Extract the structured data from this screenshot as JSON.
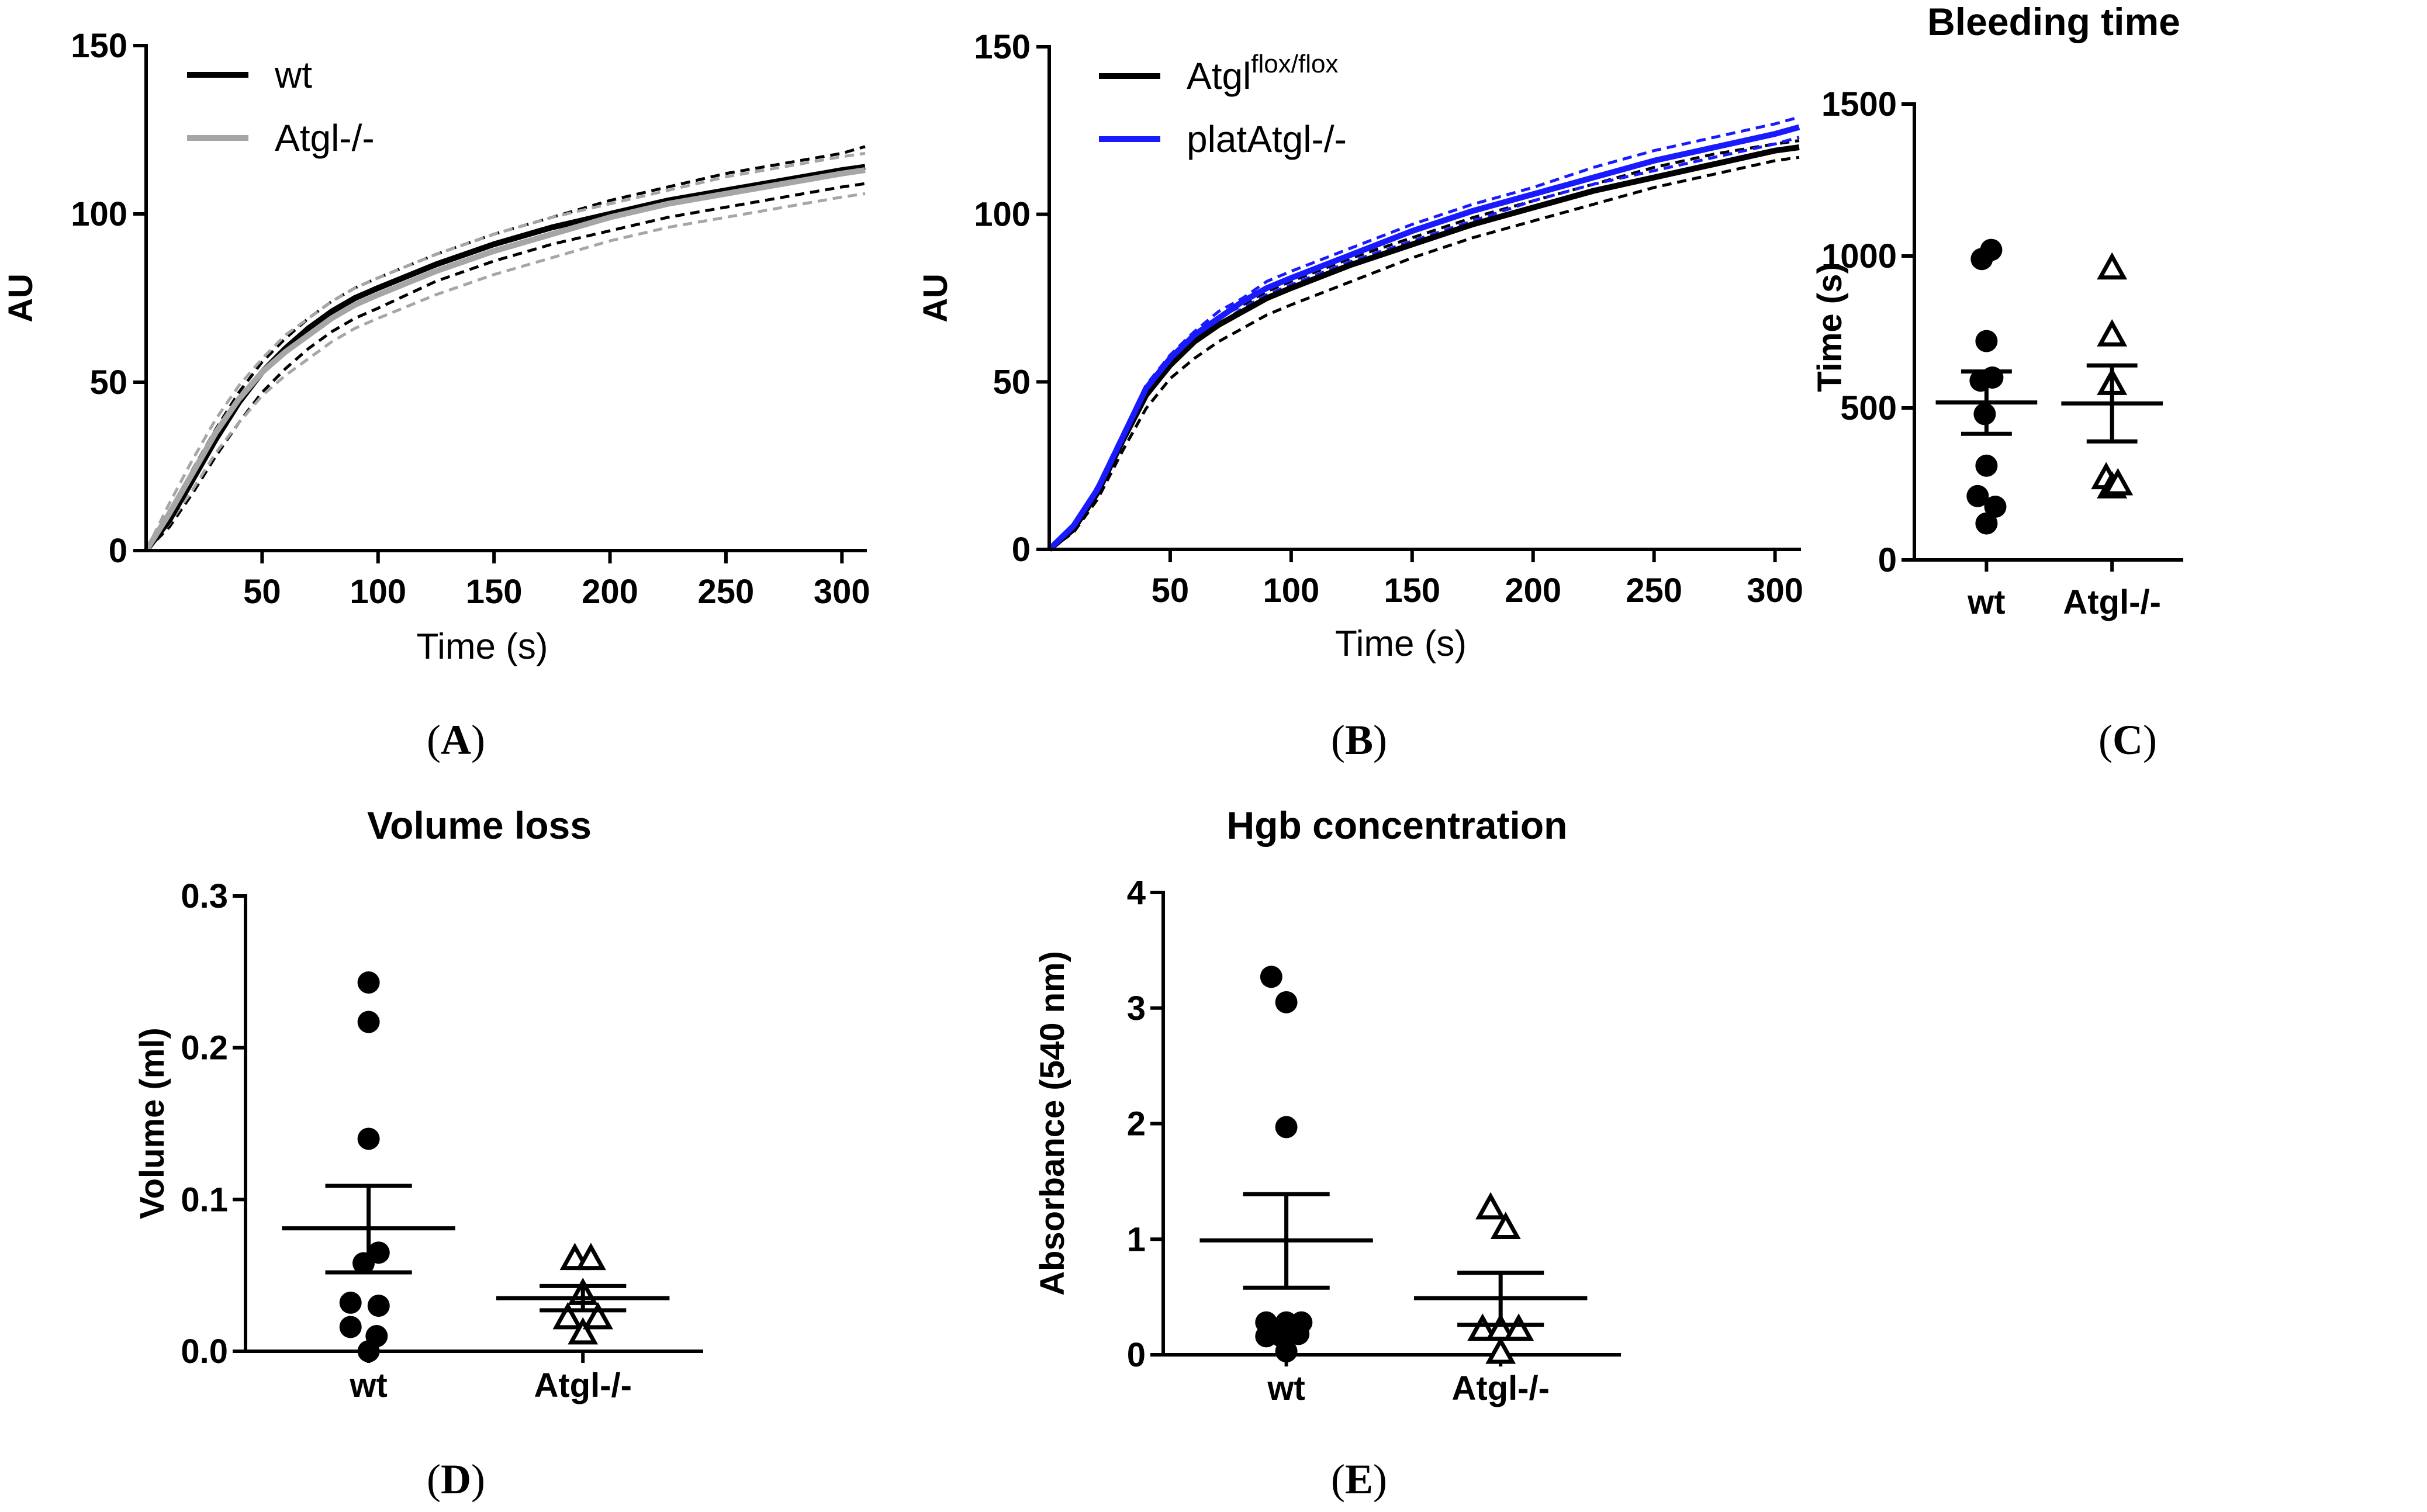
{
  "chart_data": [
    {
      "panel": "A",
      "type": "line",
      "title": "",
      "xlabel": "Time (s)",
      "ylabel": "AU",
      "xlim": [
        0,
        310
      ],
      "ylim": [
        0,
        150
      ],
      "xticks": [
        50,
        100,
        150,
        200,
        250,
        300
      ],
      "yticks": [
        0,
        50,
        100,
        150
      ],
      "legend": [
        "wt",
        "Atgl-/-"
      ],
      "x": [
        0,
        10,
        20,
        30,
        40,
        50,
        60,
        70,
        80,
        90,
        100,
        125,
        150,
        175,
        200,
        225,
        250,
        275,
        300,
        310
      ],
      "series": [
        {
          "name": "wt",
          "color": "#000000",
          "style": "solid",
          "values": [
            0,
            9,
            21,
            33,
            44,
            53,
            60,
            66,
            71,
            75,
            78,
            85,
            91,
            96,
            100,
            104,
            107,
            110,
            113,
            114
          ]
        },
        {
          "name": "wt upper",
          "color": "#000000",
          "style": "dashed",
          "values": [
            0,
            11,
            24,
            36,
            47,
            56,
            63,
            69,
            74,
            78,
            81,
            88,
            94,
            99,
            104,
            108,
            112,
            115,
            118,
            120
          ]
        },
        {
          "name": "wt lower",
          "color": "#000000",
          "style": "dashed",
          "values": [
            0,
            7,
            17,
            28,
            38,
            47,
            54,
            60,
            65,
            69,
            72,
            80,
            86,
            91,
            95,
            99,
            102,
            105,
            108,
            109
          ]
        },
        {
          "name": "Atgl-/-",
          "color": "#a6a6a6",
          "style": "solid",
          "values": [
            0,
            11,
            23,
            35,
            45,
            53,
            59,
            64,
            69,
            73,
            76,
            83,
            89,
            94,
            99,
            103,
            106,
            109,
            112,
            113
          ]
        },
        {
          "name": "Atgl-/- upper",
          "color": "#a6a6a6",
          "style": "dashed",
          "values": [
            0,
            14,
            27,
            39,
            49,
            57,
            64,
            69,
            74,
            78,
            81,
            88,
            94,
            99,
            103,
            107,
            111,
            114,
            117,
            118
          ]
        },
        {
          "name": "Atgl-/- lower",
          "color": "#a6a6a6",
          "style": "dashed",
          "values": [
            0,
            8,
            18,
            29,
            38,
            46,
            52,
            57,
            62,
            66,
            69,
            76,
            82,
            87,
            92,
            96,
            99,
            102,
            105,
            106
          ]
        }
      ],
      "label": "(A)"
    },
    {
      "panel": "B",
      "type": "line",
      "title": "",
      "xlabel": "Time (s)",
      "ylabel": "AU",
      "xlim": [
        0,
        310
      ],
      "ylim": [
        0,
        150
      ],
      "xticks": [
        50,
        100,
        150,
        200,
        250,
        300
      ],
      "yticks": [
        0,
        50,
        100,
        150
      ],
      "legend": [
        {
          "text": "Atgl",
          "sup": "flox/flox"
        },
        {
          "text": "platAtgl-/-",
          "sup": ""
        }
      ],
      "x": [
        0,
        10,
        20,
        30,
        40,
        50,
        60,
        70,
        80,
        90,
        100,
        125,
        150,
        175,
        200,
        225,
        250,
        275,
        300,
        310
      ],
      "series": [
        {
          "name": "Atgl flox/flox",
          "color": "#000000",
          "style": "solid",
          "values": [
            0,
            6,
            17,
            32,
            46,
            55,
            62,
            67,
            71,
            75,
            78,
            85,
            91,
            97,
            102,
            107,
            111,
            115,
            119,
            120
          ]
        },
        {
          "name": "Atgl flox/flox upper",
          "color": "#000000",
          "style": "dashed",
          "values": [
            0,
            7,
            19,
            34,
            48,
            57,
            64,
            69,
            73,
            77,
            80,
            87,
            93,
            99,
            104,
            109,
            114,
            118,
            121,
            122
          ]
        },
        {
          "name": "Atgl flox/flox lower",
          "color": "#000000",
          "style": "dashed",
          "values": [
            0,
            5,
            15,
            29,
            42,
            51,
            57,
            62,
            66,
            70,
            73,
            80,
            87,
            93,
            98,
            103,
            108,
            112,
            116,
            117
          ]
        },
        {
          "name": "platAtgl-/-",
          "color": "#1a1aff",
          "style": "solid",
          "values": [
            0,
            7,
            18,
            33,
            48,
            57,
            64,
            69,
            74,
            78,
            81,
            88,
            95,
            101,
            106,
            111,
            116,
            120,
            124,
            126
          ]
        },
        {
          "name": "platAtgl-/- upper",
          "color": "#1a1aff",
          "style": "dashed",
          "values": [
            0,
            7,
            19,
            34,
            49,
            58,
            65,
            71,
            75,
            80,
            83,
            90,
            97,
            103,
            108,
            114,
            119,
            123,
            127,
            129
          ]
        },
        {
          "name": "platAtgl-/- lower",
          "color": "#1a1aff",
          "style": "dashed",
          "values": [
            0,
            6,
            17,
            31,
            46,
            55,
            62,
            67,
            72,
            76,
            79,
            86,
            92,
            98,
            104,
            109,
            113,
            117,
            121,
            123
          ]
        }
      ],
      "label": "(B)"
    },
    {
      "panel": "C",
      "type": "scatter",
      "title": "Bleeding time",
      "xlabel": "",
      "ylabel": "Time (s)",
      "ylim": [
        0,
        1500
      ],
      "yticks": [
        0,
        500,
        1000,
        1500
      ],
      "categories": [
        "wt",
        "Atgl-/-"
      ],
      "groups": [
        {
          "name": "wt",
          "marker": "circle",
          "points": [
            [
              -0.08,
              990
            ],
            [
              0.08,
              1020
            ],
            [
              0.0,
              720
            ],
            [
              -0.1,
              590
            ],
            [
              0.1,
              600
            ],
            [
              -0.03,
              480
            ],
            [
              0.0,
              310
            ],
            [
              -0.15,
              210
            ],
            [
              0.15,
              175
            ],
            [
              0.0,
              120
            ]
          ],
          "mean": 518,
          "sem_low": 415,
          "sem_high": 620
        },
        {
          "name": "Atgl-/-",
          "marker": "triangle",
          "points": [
            [
              0.0,
              960
            ],
            [
              0.0,
              740
            ],
            [
              0.0,
              580
            ],
            [
              -0.1,
              270
            ],
            [
              0.0,
              240
            ],
            [
              0.1,
              250
            ]
          ],
          "mean": 515,
          "sem_low": 390,
          "sem_high": 640
        }
      ],
      "label": "(C)"
    },
    {
      "panel": "D",
      "type": "scatter",
      "title": "Volume loss",
      "xlabel": "",
      "ylabel": "Volume (ml)",
      "ylim": [
        0,
        0.3
      ],
      "yticks": [
        0.0,
        0.1,
        0.2,
        0.3
      ],
      "ytick_labels": [
        "0.0",
        "0.1",
        "0.2",
        "0.3"
      ],
      "categories": [
        "wt",
        "Atgl-/-"
      ],
      "groups": [
        {
          "name": "wt",
          "marker": "circle",
          "points": [
            [
              0.0,
              0.243
            ],
            [
              0.0,
              0.217
            ],
            [
              0.0,
              0.14
            ],
            [
              0.1,
              0.065
            ],
            [
              -0.05,
              0.058
            ],
            [
              -0.18,
              0.032
            ],
            [
              0.1,
              0.03
            ],
            [
              -0.18,
              0.016
            ],
            [
              0.08,
              0.01
            ],
            [
              0.0,
              0.0
            ]
          ],
          "mean": 0.081,
          "sem_low": 0.052,
          "sem_high": 0.109
        },
        {
          "name": "Atgl-/-",
          "marker": "triangle",
          "points": [
            [
              -0.08,
              0.061
            ],
            [
              0.08,
              0.061
            ],
            [
              0.0,
              0.038
            ],
            [
              -0.15,
              0.022
            ],
            [
              0.0,
              0.012
            ],
            [
              0.15,
              0.022
            ]
          ],
          "mean": 0.035,
          "sem_low": 0.027,
          "sem_high": 0.043
        }
      ],
      "label": "(D)"
    },
    {
      "panel": "E",
      "type": "scatter",
      "title": "Hgb concentration",
      "xlabel": "",
      "ylabel": "Absorbance (540 nm)",
      "ylim": [
        0,
        4
      ],
      "yticks": [
        0,
        1,
        2,
        3,
        4
      ],
      "categories": [
        "wt",
        "Atgl-/-"
      ],
      "groups": [
        {
          "name": "wt",
          "marker": "circle",
          "points": [
            [
              -0.15,
              3.27
            ],
            [
              0.0,
              3.05
            ],
            [
              0.0,
              1.97
            ],
            [
              -0.2,
              0.28
            ],
            [
              0.0,
              0.28
            ],
            [
              0.15,
              0.28
            ],
            [
              -0.2,
              0.16
            ],
            [
              -0.05,
              0.16
            ],
            [
              0.12,
              0.18
            ],
            [
              0.0,
              0.03
            ]
          ],
          "mean": 0.99,
          "sem_low": 0.58,
          "sem_high": 1.39
        },
        {
          "name": "Atgl-/-",
          "marker": "triangle",
          "points": [
            [
              -0.1,
              1.27
            ],
            [
              0.05,
              1.1
            ],
            [
              -0.18,
              0.22
            ],
            [
              0.0,
              0.22
            ],
            [
              0.18,
              0.22
            ],
            [
              0.0,
              0.02
            ]
          ],
          "mean": 0.49,
          "sem_low": 0.26,
          "sem_high": 0.71
        }
      ],
      "label": "(E)"
    }
  ]
}
